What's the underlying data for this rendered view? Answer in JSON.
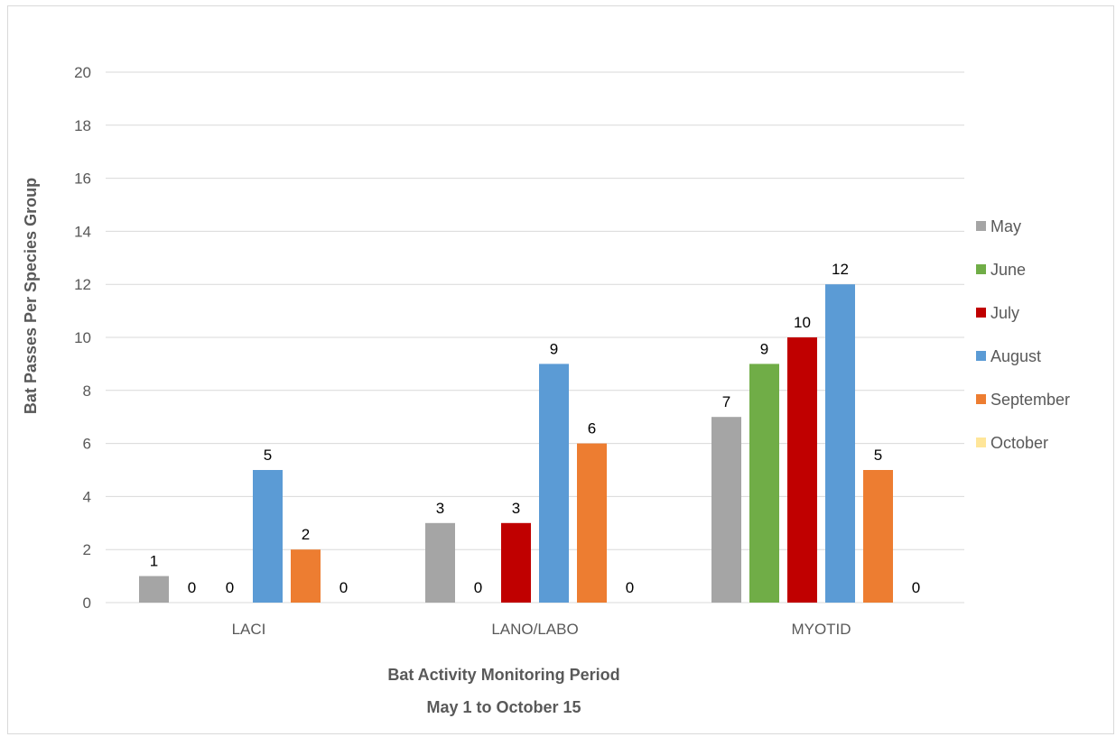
{
  "chart_data": {
    "type": "bar",
    "categories": [
      "LACI",
      "LANO/LABO",
      "MYOTID"
    ],
    "series": [
      {
        "name": "May",
        "color": "#a5a5a5",
        "values": [
          1,
          3,
          7
        ]
      },
      {
        "name": "June",
        "color": "#70ad47",
        "values": [
          0,
          0,
          9
        ]
      },
      {
        "name": "July",
        "color": "#c00000",
        "values": [
          0,
          3,
          10
        ]
      },
      {
        "name": "August",
        "color": "#5b9bd5",
        "values": [
          5,
          9,
          12
        ]
      },
      {
        "name": "September",
        "color": "#ed7d31",
        "values": [
          2,
          6,
          5
        ]
      },
      {
        "name": "October",
        "color": "#ffe699",
        "values": [
          0,
          0,
          0
        ]
      }
    ],
    "data_labels": [
      [
        "1",
        "0",
        "0",
        "5",
        "2",
        "0"
      ],
      [
        "3",
        "0",
        "3",
        "9",
        "6",
        "0"
      ],
      [
        "7",
        "9",
        "10",
        "12",
        "5",
        "0"
      ]
    ],
    "ylim": [
      0,
      20
    ],
    "yticks": [
      0,
      2,
      4,
      6,
      8,
      10,
      12,
      14,
      16,
      18,
      20
    ],
    "ylabel": "Bat Passes Per Species Group",
    "xlabel_line1": "Bat Activity Monitoring Period",
    "xlabel_line2": "May 1 to October 15",
    "gridlines": true,
    "legend_position": "right"
  }
}
